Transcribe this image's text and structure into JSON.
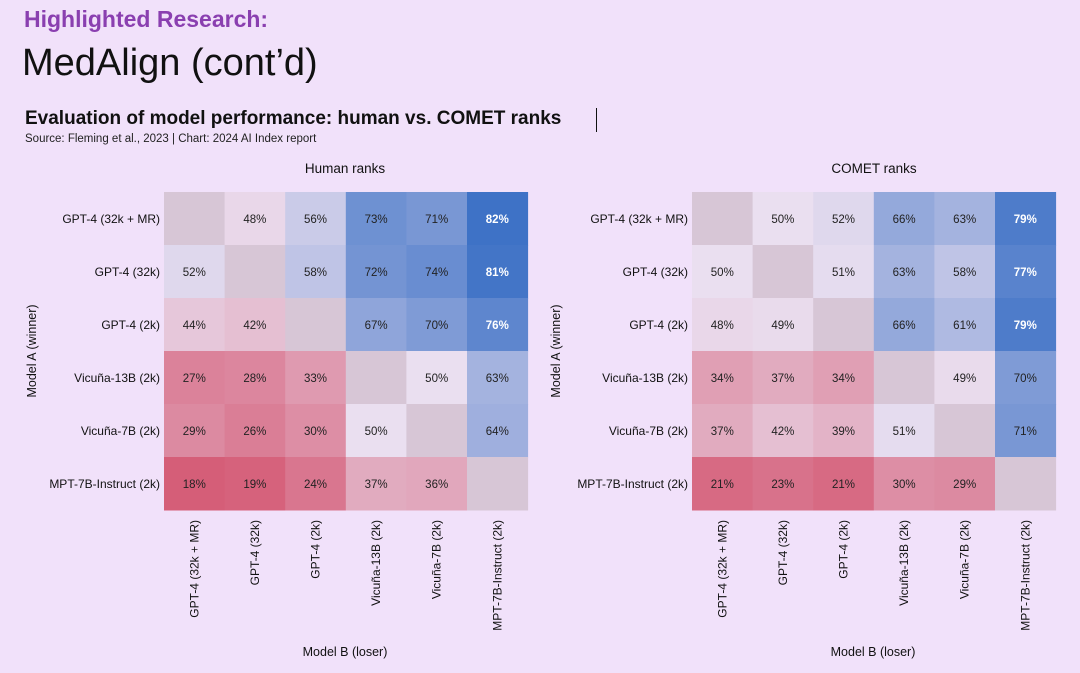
{
  "slide": {
    "subtitle": "Highlighted Research:",
    "title": "MedAlign (cont’d)"
  },
  "chart_header": {
    "title": "Evaluation of model performance: human vs. COMET ranks",
    "source": "Source: Fleming et al., 2023 | Chart: 2024 AI Index report"
  },
  "colors": {
    "background": "#f1e1fa",
    "subtitle": "#8a3fb0",
    "low": "#d55e78",
    "mid": "#eadff0",
    "high": "#3e72c6",
    "diagonal": "#d7c6d6"
  },
  "chart_data": [
    {
      "type": "heatmap",
      "title": "Human ranks",
      "xlabel": "Model B (loser)",
      "ylabel": "Model A (winner)",
      "rows": [
        "GPT-4 (32k + MR)",
        "GPT-4 (32k)",
        "GPT-4 (2k)",
        "Vicuña-13B (2k)",
        "Vicuña-7B (2k)",
        "MPT-7B-Instruct (2k)"
      ],
      "columns": [
        "GPT-4 (32k + MR)",
        "GPT-4 (32k)",
        "GPT-4 (2k)",
        "Vicuña-13B (2k)",
        "Vicuña-7B (2k)",
        "MPT-7B-Instruct (2k)"
      ],
      "values": [
        [
          null,
          48,
          56,
          73,
          71,
          82
        ],
        [
          52,
          null,
          58,
          72,
          74,
          81
        ],
        [
          44,
          42,
          null,
          67,
          70,
          76
        ],
        [
          27,
          28,
          33,
          null,
          50,
          63
        ],
        [
          29,
          26,
          30,
          50,
          null,
          64
        ],
        [
          18,
          19,
          24,
          37,
          36,
          null
        ]
      ],
      "unit": "%"
    },
    {
      "type": "heatmap",
      "title": "COMET ranks",
      "xlabel": "Model B (loser)",
      "ylabel": "Model A (winner)",
      "rows": [
        "GPT-4 (32k + MR)",
        "GPT-4 (32k)",
        "GPT-4 (2k)",
        "Vicuña-13B (2k)",
        "Vicuña-7B (2k)",
        "MPT-7B-Instruct (2k)"
      ],
      "columns": [
        "GPT-4 (32k + MR)",
        "GPT-4 (32k)",
        "GPT-4 (2k)",
        "Vicuña-13B (2k)",
        "Vicuña-7B (2k)",
        "MPT-7B-Instruct (2k)"
      ],
      "values": [
        [
          null,
          50,
          52,
          66,
          63,
          79
        ],
        [
          50,
          null,
          51,
          63,
          58,
          77
        ],
        [
          48,
          49,
          null,
          66,
          61,
          79
        ],
        [
          34,
          37,
          34,
          null,
          49,
          70
        ],
        [
          37,
          42,
          39,
          51,
          null,
          71
        ],
        [
          21,
          23,
          21,
          30,
          29,
          null
        ]
      ],
      "unit": "%"
    }
  ]
}
